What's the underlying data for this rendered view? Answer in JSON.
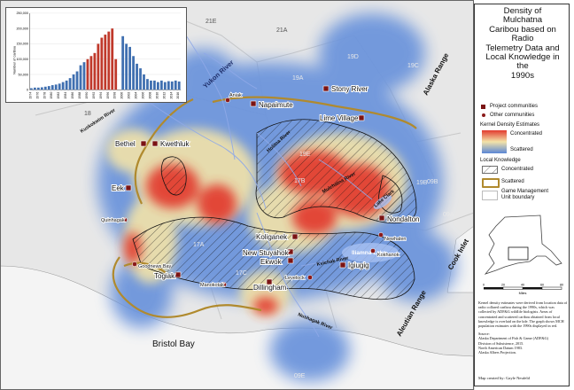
{
  "title": "Density of\nMulchatna\nCaribou based on\nRadio\nTelemetry Data and\nLocal Knowledge in\nthe\n1990s",
  "legend": {
    "project_communities": "Project communities",
    "other_communities": "Other communities",
    "kernel_heading": "Kernel Density Estimates",
    "kernel_high": "Concentrated",
    "kernel_low": "Scattered",
    "lk_heading": "Local Knowledge",
    "lk_concentrated": "Concentrated",
    "lk_scattered": "Scattered",
    "gmu": "Game Management\nUnit boundary",
    "scale_labels": [
      "0",
      "20",
      "40",
      "60",
      "80"
    ],
    "scale_unit": "Miles",
    "colors": {
      "project": "#7b1414",
      "other": "#8b1a1a",
      "kernel_high": "#e23b2f",
      "kernel_mid": "#f3e3a8",
      "kernel_low": "#5a86d6",
      "lk_scattered": "#b08a2e",
      "gmu": "#d8d8d8"
    }
  },
  "sources": {
    "p1": "Kernel density estimates were derived from location data of radio collared caribou during the 1990s, which was collected by ADF&G wildlife biologists. Areas of concentrated and scattered caribou obtained from local knowledge is overlaid on the kde. The graph shows MCH population estimates with the 1990s displayed in red.",
    "p2": "Source:\nAlaska Department of Fish & Game (ADF&G)\nDivision of Subsistence, 2015.\nNorth American Datum 1983.\nAlaska Albers Projection.",
    "credit": "Map created by: Gayle Neufeld"
  },
  "map_labels": {
    "project_communities": [
      "Napaimute",
      "Stony River",
      "Lime Village",
      "Bethel",
      "Kwethluk",
      "Eek",
      "Nondalton",
      "Koliganek",
      "New Stuyahok",
      "Ekwok",
      "Togiak",
      "Dillingham",
      "Igiugig"
    ],
    "other_communities": [
      "Aniak",
      "Quinhagak",
      "Goodnews Bay",
      "Manokotak",
      "Levelock",
      "Newhalen",
      "Kokhanok"
    ],
    "rivers": [
      "Yukon River",
      "Kuskokwim River",
      "Holitna River",
      "Mulchatna River",
      "Nushagak River",
      "Kvichak River",
      "Lake Clark"
    ],
    "water": [
      "Bristol Bay",
      "Cook Inlet",
      "Iliamna Lake"
    ],
    "ranges": [
      "Alaska Range",
      "Aleutian Range"
    ],
    "gmu": [
      "21E",
      "21A",
      "19A",
      "19D",
      "19C",
      "19B",
      "16B",
      "18",
      "19E",
      "17B",
      "17A",
      "17C",
      "09B",
      "09A",
      "09C",
      "09E"
    ]
  },
  "chart_data": {
    "type": "bar",
    "ylabel": "Number of caribou",
    "ylim": [
      0,
      250000
    ],
    "yticks": [
      "0",
      "50,000",
      "100,000",
      "150,000",
      "200,000",
      "250,000"
    ],
    "xticks": [
      "1974",
      "1976",
      "1978",
      "1980",
      "1982",
      "1984",
      "1986",
      "1988",
      "1990",
      "1992",
      "1994",
      "1996",
      "1998",
      "2000",
      "2002",
      "2004",
      "2006",
      "2008",
      "2010",
      "2012",
      "2014",
      "2016"
    ],
    "series": [
      {
        "color": "#3f6fb0",
        "points": [
          [
            1974,
            5000
          ],
          [
            1975,
            7000
          ],
          [
            1976,
            7000
          ],
          [
            1977,
            8000
          ],
          [
            1978,
            10000
          ],
          [
            1979,
            12000
          ],
          [
            1980,
            15000
          ],
          [
            1981,
            17000
          ],
          [
            1982,
            20000
          ],
          [
            1983,
            25000
          ],
          [
            1984,
            30000
          ],
          [
            1985,
            38000
          ],
          [
            1986,
            50000
          ],
          [
            1987,
            60000
          ],
          [
            1988,
            80000
          ],
          [
            1989,
            90000
          ],
          [
            2000,
            175000
          ],
          [
            2001,
            150000
          ],
          [
            2002,
            140000
          ],
          [
            2003,
            110000
          ],
          [
            2004,
            85000
          ],
          [
            2005,
            70000
          ],
          [
            2006,
            50000
          ],
          [
            2007,
            35000
          ],
          [
            2008,
            30000
          ],
          [
            2009,
            30000
          ],
          [
            2010,
            25000
          ],
          [
            2011,
            30000
          ],
          [
            2012,
            25000
          ],
          [
            2013,
            28000
          ],
          [
            2014,
            27000
          ],
          [
            2015,
            30000
          ],
          [
            2016,
            27000
          ]
        ]
      },
      {
        "color": "#c0392b",
        "points": [
          [
            1990,
            100000
          ],
          [
            1991,
            110000
          ],
          [
            1992,
            120000
          ],
          [
            1993,
            150000
          ],
          [
            1994,
            170000
          ],
          [
            1995,
            180000
          ],
          [
            1996,
            190000
          ],
          [
            1997,
            200000
          ],
          [
            1998,
            100000
          ]
        ]
      }
    ]
  }
}
